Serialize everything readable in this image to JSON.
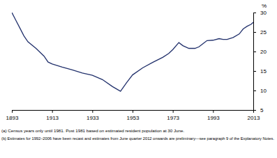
{
  "chart_data": {
    "type": "line",
    "ylabel": "%",
    "annotations": [
      "(a) Census years only until 1981. Post 1981 based on estimated resident population at 30 June.",
      "(b) Estimates for 1992–2006 have been recast and estimates from June quarter 2012 onwards are preliminary—see paragraph 9 of the Explanatory Notes."
    ],
    "x": [
      1893,
      1895,
      1897,
      1899,
      1901,
      1905,
      1909,
      1911,
      1913,
      1918,
      1923,
      1928,
      1933,
      1938,
      1943,
      1947,
      1950,
      1953,
      1958,
      1963,
      1968,
      1971,
      1973,
      1976,
      1978,
      1981,
      1984,
      1986,
      1988,
      1990,
      1993,
      1996,
      1998,
      2000,
      2003,
      2006,
      2008,
      2010,
      2012,
      2013
    ],
    "series": [
      {
        "color": "#22316c",
        "values": [
          30,
          28,
          26,
          24,
          22.5,
          20.8,
          18.8,
          17.3,
          16.8,
          16,
          15.3,
          14.5,
          13.9,
          12.8,
          11,
          9.8,
          12,
          14,
          15.8,
          17.2,
          18.5,
          19.5,
          20.5,
          22.3,
          21.5,
          20.8,
          20.8,
          21.2,
          22,
          22.8,
          22.9,
          23.3,
          23.1,
          23.1,
          23.6,
          24.5,
          25.8,
          26.5,
          27,
          27.5
        ]
      }
    ],
    "xlim": [
      1893,
      2013
    ],
    "xticks": [
      1893,
      1913,
      1933,
      1953,
      1973,
      1993,
      2013
    ],
    "ylim": [
      5,
      30
    ],
    "yticks": [
      5,
      10,
      15,
      20,
      25,
      30
    ],
    "grid": false
  }
}
